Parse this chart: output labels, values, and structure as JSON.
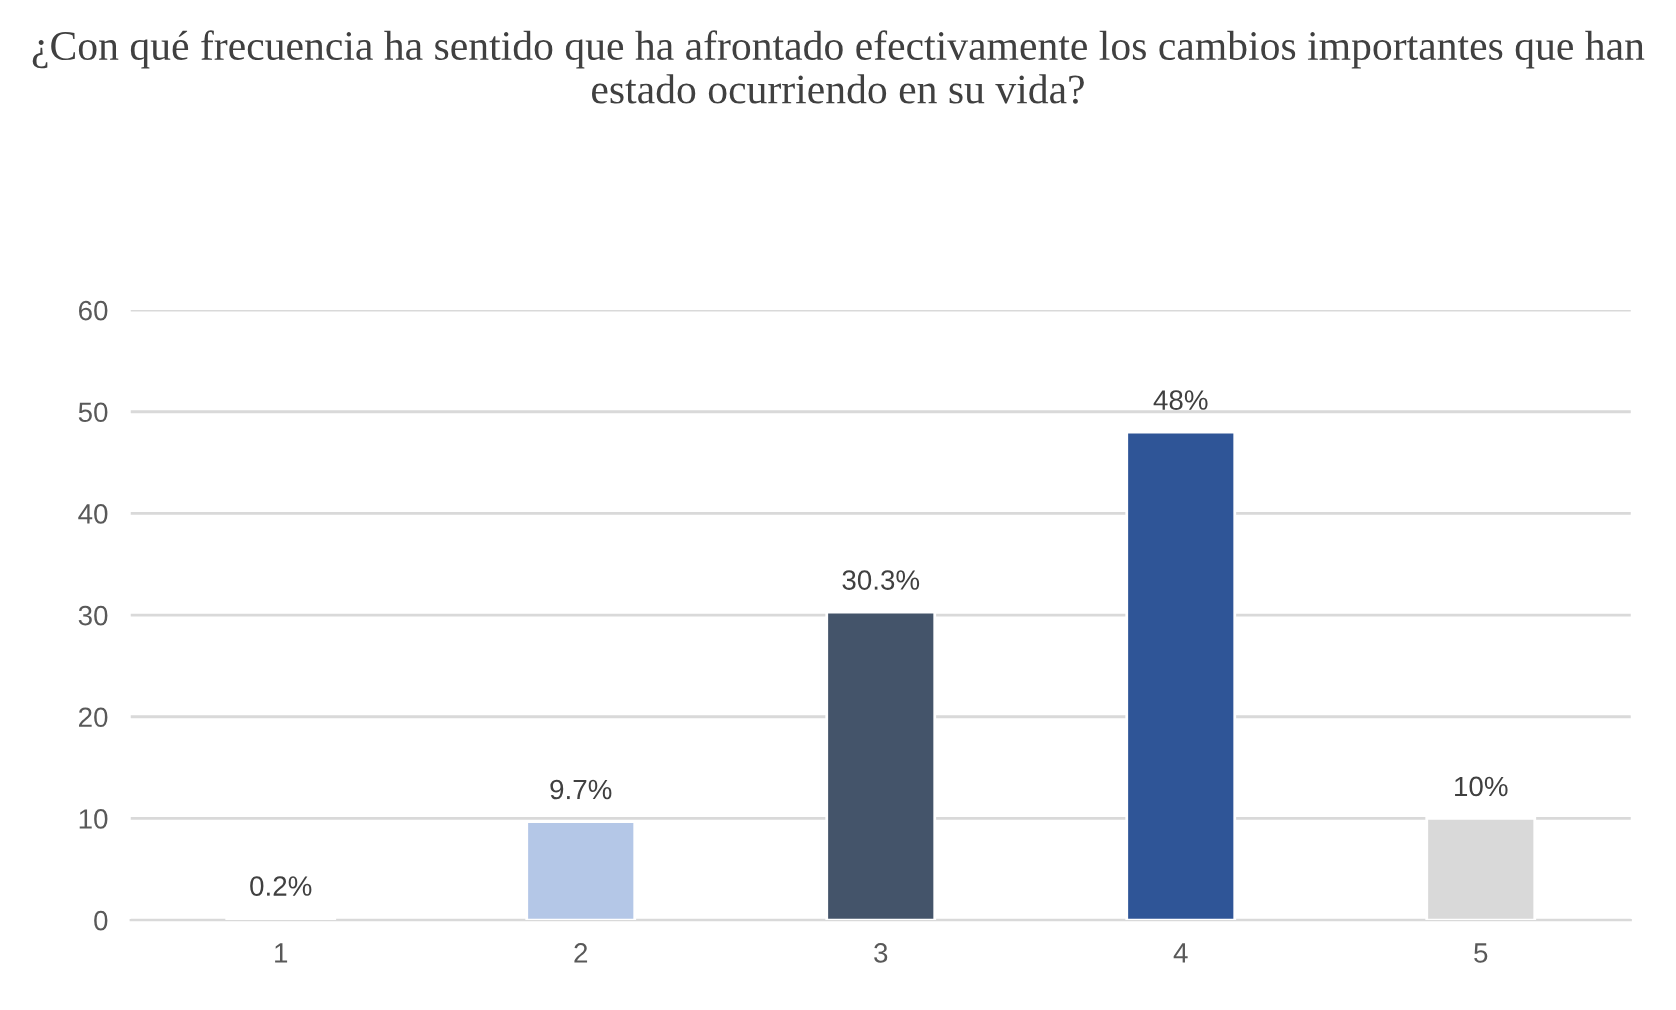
{
  "chart_data": {
    "type": "bar",
    "title": "¿Con qué frecuencia ha sentido que ha afrontado efectivamente los cambios importantes que han estado ocurriendo en su vida?",
    "categories": [
      "1",
      "2",
      "3",
      "4",
      "5"
    ],
    "values": [
      0.2,
      9.7,
      30.3,
      48,
      10
    ],
    "colors": [
      "#8faadc",
      "#b4c7e7",
      "#44546a",
      "#2f5597",
      "#d9d9d9"
    ],
    "value_labels": [
      "0.2%",
      "9.7%",
      "30.3%",
      "48%",
      "10%"
    ],
    "ylim": [
      0,
      60
    ],
    "yticks": [
      0,
      10,
      20,
      30,
      40,
      50,
      60
    ],
    "grid": "y",
    "legend": false
  }
}
